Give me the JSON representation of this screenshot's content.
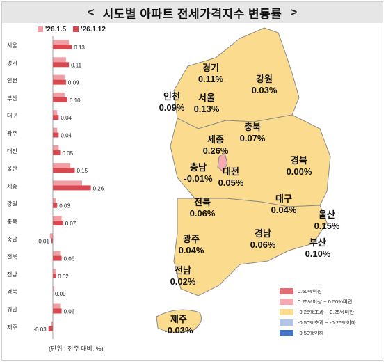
{
  "header": {
    "left_chevron": "<",
    "title": "시도별 아파트 전세가격지수 변동률",
    "right_chevron": ">"
  },
  "chart_data": {
    "type": "bar",
    "title": "시도별 아파트 전세가격지수 변동률",
    "unit_note": "(단위 : 전주 대비, %)",
    "categories": [
      "서울",
      "경기",
      "인천",
      "부산",
      "대구",
      "광주",
      "대전",
      "울산",
      "세종",
      "강원",
      "충북",
      "충남",
      "전북",
      "전남",
      "경북",
      "경남",
      "제주"
    ],
    "series": [
      {
        "name": "'26.1.5",
        "color": "#f0a0a5",
        "values": [
          0.11,
          0.09,
          0.08,
          0.08,
          0.03,
          0.03,
          0.04,
          0.12,
          0.2,
          0.02,
          0.06,
          -0.02,
          0.05,
          0.02,
          0.01,
          0.05,
          -0.01
        ]
      },
      {
        "name": "'26.1.12",
        "color": "#d9474f",
        "values": [
          0.13,
          0.11,
          0.09,
          0.1,
          0.04,
          0.04,
          0.05,
          0.15,
          0.26,
          0.03,
          0.07,
          -0.01,
          0.06,
          0.02,
          0.0,
          0.06,
          -0.03
        ]
      }
    ],
    "data_labels": [
      "0.13",
      "0.11",
      "0.09",
      "0.10",
      "0.04",
      "0.04",
      "0.05",
      "0.15",
      "0.26",
      "0.03",
      "0.07",
      "-0.01",
      "0.06",
      "0.02",
      "0.00",
      "0.06",
      "-0.03"
    ],
    "orientation": "horizontal",
    "legend_position": "top"
  },
  "map": {
    "regions": [
      {
        "name": "경기",
        "value": "0.11%",
        "color": "#fbdc8e"
      },
      {
        "name": "강원",
        "value": "0.03%",
        "color": "#fbdc8e"
      },
      {
        "name": "인천",
        "value": "0.09%",
        "color": "#fbdc8e"
      },
      {
        "name": "서울",
        "value": "0.13%",
        "color": "#fbdc8e"
      },
      {
        "name": "충북",
        "value": "0.07%",
        "color": "#fbdc8e"
      },
      {
        "name": "세종",
        "value": "0.26%",
        "color": "#f4aab0"
      },
      {
        "name": "경북",
        "value": "0.00%",
        "color": "#fbdc8e"
      },
      {
        "name": "충남",
        "value": "-0.01%",
        "color": "#fbdc8e"
      },
      {
        "name": "대전",
        "value": "0.05%",
        "color": "#fbdc8e"
      },
      {
        "name": "대구",
        "value": "0.04%",
        "color": "#fbdc8e"
      },
      {
        "name": "전북",
        "value": "0.06%",
        "color": "#fbdc8e"
      },
      {
        "name": "울산",
        "value": "0.15%",
        "color": "#fbdc8e"
      },
      {
        "name": "광주",
        "value": "0.04%",
        "color": "#fbdc8e"
      },
      {
        "name": "경남",
        "value": "0.06%",
        "color": "#fbdc8e"
      },
      {
        "name": "부산",
        "value": "0.10%",
        "color": "#fbdc8e"
      },
      {
        "name": "전남",
        "value": "0.02%",
        "color": "#fbdc8e"
      },
      {
        "name": "제주",
        "value": "-0.03%",
        "color": "#fbdc8e"
      }
    ],
    "legend": [
      {
        "label": "0.50%이상",
        "color": "#e06c74"
      },
      {
        "label": "0.25%이상 ~ 0.50%미만",
        "color": "#f4aab0"
      },
      {
        "label": "-0.25%초과 ~ 0.25%미만",
        "color": "#fbdc8e"
      },
      {
        "label": "-0.50%초과 ~ -0.25%이하",
        "color": "#b4c6e7"
      },
      {
        "label": "-0.50%이하",
        "color": "#4472c4"
      }
    ]
  }
}
